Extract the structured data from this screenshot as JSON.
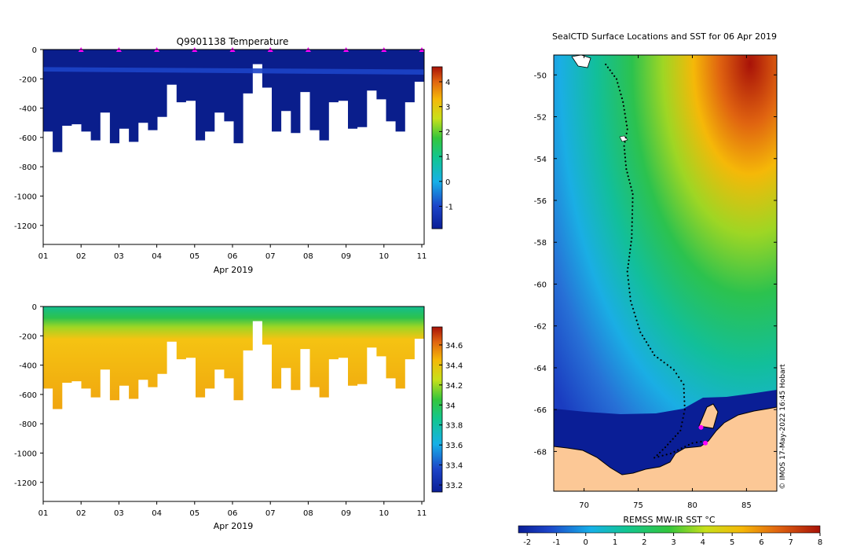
{
  "chart_data": [
    {
      "type": "heatmap",
      "title": "Q9901138  Temperature",
      "xlabel": "Apr 2019",
      "x_ticks": [
        "01",
        "02",
        "03",
        "04",
        "05",
        "06",
        "07",
        "08",
        "09",
        "10",
        "11"
      ],
      "y_ticks": [
        0,
        -200,
        -400,
        -600,
        -800,
        -1000,
        -1200
      ],
      "ylim": [
        -1330,
        0
      ],
      "colorbar": {
        "ticks": [
          -1,
          0,
          1,
          2,
          3,
          4
        ],
        "range": [
          -1.9,
          4.6
        ]
      },
      "profile_depth_m": [
        -560,
        -700,
        -520,
        -510,
        -560,
        -620,
        -430,
        -640,
        -540,
        -630,
        -500,
        -550,
        -460,
        -240,
        -360,
        -350,
        -620,
        -560,
        -430,
        -490,
        -640,
        -300,
        -100,
        -260,
        -560,
        -420,
        -570,
        -290,
        -550,
        -620,
        -360,
        -350,
        -540,
        -530,
        -280,
        -340,
        -490,
        -560,
        -360,
        -220
      ],
      "surface_markers_day": [
        2,
        3,
        4,
        5,
        6,
        7,
        8,
        9,
        10,
        11
      ]
    },
    {
      "type": "heatmap",
      "title": "",
      "xlabel": "Apr 2019",
      "x_ticks": [
        "01",
        "02",
        "03",
        "04",
        "05",
        "06",
        "07",
        "08",
        "09",
        "10",
        "11"
      ],
      "y_ticks": [
        0,
        -200,
        -400,
        -600,
        -800,
        -1000,
        -1200
      ],
      "ylim": [
        -1330,
        0
      ],
      "colorbar": {
        "ticks": [
          "33.2",
          "33.4",
          "33.6",
          "33.8",
          "34",
          "34.2",
          "34.4",
          "34.6"
        ],
        "range": [
          33.13,
          34.78
        ]
      },
      "profile_depth_m": [
        -560,
        -700,
        -520,
        -510,
        -560,
        -620,
        -430,
        -640,
        -540,
        -630,
        -500,
        -550,
        -460,
        -240,
        -360,
        -350,
        -620,
        -560,
        -430,
        -490,
        -640,
        -300,
        -100,
        -260,
        -560,
        -420,
        -570,
        -290,
        -550,
        -620,
        -360,
        -350,
        -540,
        -530,
        -280,
        -340,
        -490,
        -560,
        -360,
        -220
      ]
    },
    {
      "type": "heatmap",
      "title": "SealCTD Surface Locations and SST for 06 Apr 2019",
      "x_ticks": [
        70,
        75,
        80,
        85
      ],
      "y_ticks": [
        -50,
        -52,
        -54,
        -56,
        -58,
        -60,
        -62,
        -64,
        -66,
        -68
      ],
      "xlim": [
        67.2,
        87.8
      ],
      "ylim": [
        -69.9,
        -49.05
      ],
      "colorbar": {
        "label": "REMSS MW-IR SST °C",
        "ticks": [
          -2,
          -1,
          0,
          1,
          2,
          3,
          4,
          5,
          6,
          7,
          8
        ],
        "range": [
          -2.3,
          8
        ]
      },
      "track_lon_lat": [
        [
          72,
          -49.5
        ],
        [
          73,
          -50.2
        ],
        [
          73.6,
          -51.3
        ],
        [
          74,
          -52.6
        ],
        [
          73.7,
          -53.4
        ],
        [
          73.9,
          -54.5
        ],
        [
          74.5,
          -55.7
        ],
        [
          74.4,
          -57.8
        ],
        [
          74,
          -59.4
        ],
        [
          74.3,
          -60.8
        ],
        [
          75.2,
          -62.3
        ],
        [
          76.5,
          -63.4
        ],
        [
          78.3,
          -64.1
        ],
        [
          79.2,
          -64.8
        ],
        [
          79.3,
          -66
        ],
        [
          78.9,
          -67
        ],
        [
          77.5,
          -67.8
        ],
        [
          76.5,
          -68.3
        ],
        [
          78,
          -68.1
        ],
        [
          80,
          -67.6
        ],
        [
          81.2,
          -67.5
        ]
      ],
      "seal_positions_lon_lat": [
        [
          80.8,
          -66.85
        ],
        [
          81.2,
          -67.6
        ]
      ],
      "credit": "© IMOS 17-May-2022 16:45 Hobart"
    }
  ]
}
